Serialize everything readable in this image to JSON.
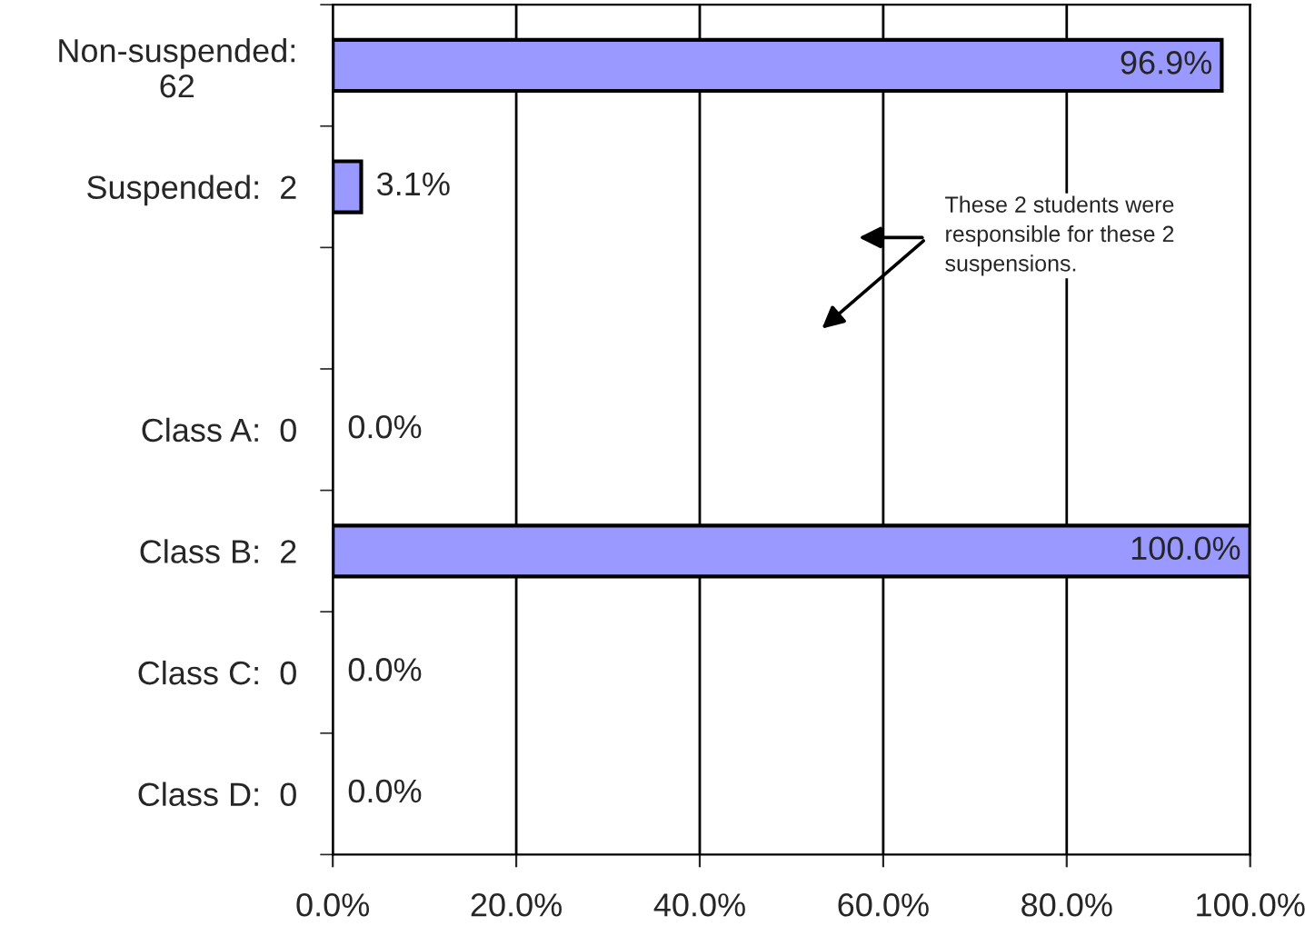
{
  "chart_data": {
    "type": "bar",
    "orientation": "horizontal",
    "categories": [
      "Non-suspended:\n62",
      "Suspended:  2",
      null,
      "Class A:  0",
      "Class B:  2",
      "Class C:  0",
      "Class D:  0"
    ],
    "values": [
      96.9,
      3.1,
      null,
      0,
      100,
      0,
      0
    ],
    "value_labels": [
      "96.9%",
      "3.1%",
      null,
      "0.0%",
      "100.0%",
      "0.0%",
      "0.0%"
    ],
    "color": "#9999ff",
    "xlim": [
      0,
      100
    ],
    "xticks": [
      {
        "value": 0,
        "label": "0.0%"
      },
      {
        "value": 20,
        "label": "20.0%"
      },
      {
        "value": 40,
        "label": "40.0%"
      },
      {
        "value": 60,
        "label": "60.0%"
      },
      {
        "value": 80,
        "label": "80.0%"
      },
      {
        "value": 100,
        "label": "100.0%"
      }
    ],
    "grid": "x",
    "legend": false,
    "annotations": [
      "These 2 students were\nresponsible for these 2\nsuspensions."
    ]
  }
}
